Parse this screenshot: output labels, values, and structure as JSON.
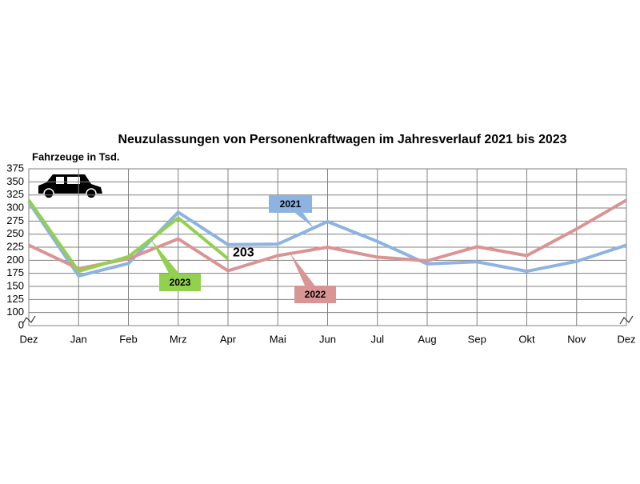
{
  "chart_data": {
    "type": "line",
    "title": "Neuzulassungen von Personenkraftwagen im Jahresverlauf 2021 bis 2023",
    "y_label": "Fahrzeuge in Tsd.",
    "categories": [
      "Dez",
      "Jan",
      "Feb",
      "Mrz",
      "Apr",
      "Mai",
      "Jun",
      "Jul",
      "Aug",
      "Sep",
      "Okt",
      "Nov",
      "Dez"
    ],
    "series": [
      {
        "name": "2021",
        "color": "#8db3e2",
        "values": [
          311,
          170,
          194,
          292,
          230,
          231,
          274,
          236,
          193,
          197,
          179,
          198,
          229
        ]
      },
      {
        "name": "2022",
        "color": "#d99594",
        "values": [
          229,
          184,
          203,
          241,
          180,
          209,
          225,
          206,
          199,
          226,
          209,
          260,
          315
        ]
      },
      {
        "name": "2023",
        "color": "#92d050",
        "values": [
          315,
          179,
          207,
          281,
          203,
          null,
          null,
          null,
          null,
          null,
          null,
          null,
          null
        ]
      }
    ],
    "ylim": [
      0,
      375
    ],
    "yticks": [
      0,
      100,
      125,
      150,
      175,
      200,
      225,
      250,
      275,
      300,
      325,
      350,
      375
    ],
    "axis_break": [
      0,
      100
    ],
    "grid": true
  }
}
